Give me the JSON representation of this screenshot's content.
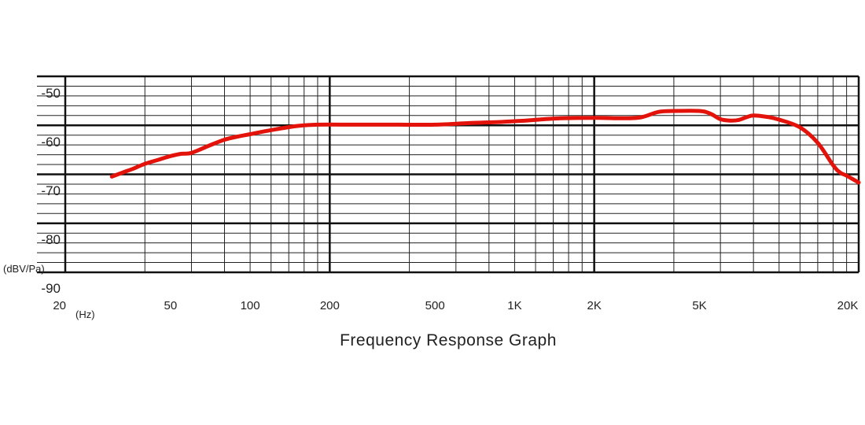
{
  "chart_data": {
    "type": "line",
    "title": "Frequency Response Graph",
    "x_scale": "log",
    "xlim": [
      20,
      20000
    ],
    "ylim": [
      -90,
      -47
    ],
    "grid": true,
    "x_major_ticks": [
      20,
      200,
      2000,
      20000
    ],
    "x_tick_labels": [
      {
        "value": 20,
        "label": "20"
      },
      {
        "value": 50,
        "label": "50"
      },
      {
        "value": 100,
        "label": "100"
      },
      {
        "value": 200,
        "label": "200"
      },
      {
        "value": 500,
        "label": "500"
      },
      {
        "value": 1000,
        "label": "1K"
      },
      {
        "value": 2000,
        "label": "2K"
      },
      {
        "value": 5000,
        "label": "5K"
      },
      {
        "value": 20000,
        "label": "20K"
      }
    ],
    "x_unit": "(Hz)",
    "y_unit": "(dBV/Pa)",
    "y_major_ticks": [
      -50,
      -60,
      -70,
      -80,
      -90
    ],
    "y_tick_labels": [
      "-50",
      "-60",
      "-70",
      "-80",
      "-90"
    ],
    "series": [
      {
        "color": "#e3120b",
        "x": [
          30,
          33,
          36,
          40,
          45,
          50,
          55,
          60,
          70,
          80,
          90,
          100,
          120,
          150,
          180,
          250,
          350,
          500,
          700,
          900,
          1100,
          1300,
          1500,
          2000,
          2500,
          3000,
          3500,
          4000,
          5000,
          5500,
          6000,
          6500,
          7000,
          7500,
          8000,
          9000,
          10000,
          12000,
          14000,
          16000,
          17000,
          18000,
          20000
        ],
        "y": [
          -69.0,
          -68.1,
          -67.3,
          -66.2,
          -65.3,
          -64.5,
          -64.0,
          -63.8,
          -62.2,
          -60.9,
          -60.2,
          -59.7,
          -58.8,
          -57.9,
          -57.6,
          -57.6,
          -57.6,
          -57.6,
          -57.2,
          -57.0,
          -56.7,
          -56.4,
          -56.2,
          -56.1,
          -56.2,
          -56.0,
          -54.8,
          -54.6,
          -54.6,
          -55.2,
          -56.4,
          -56.7,
          -56.6,
          -56.0,
          -55.6,
          -55.9,
          -56.5,
          -58.2,
          -61.6,
          -66.5,
          -68.1,
          -68.8,
          -70.3
        ]
      }
    ]
  }
}
